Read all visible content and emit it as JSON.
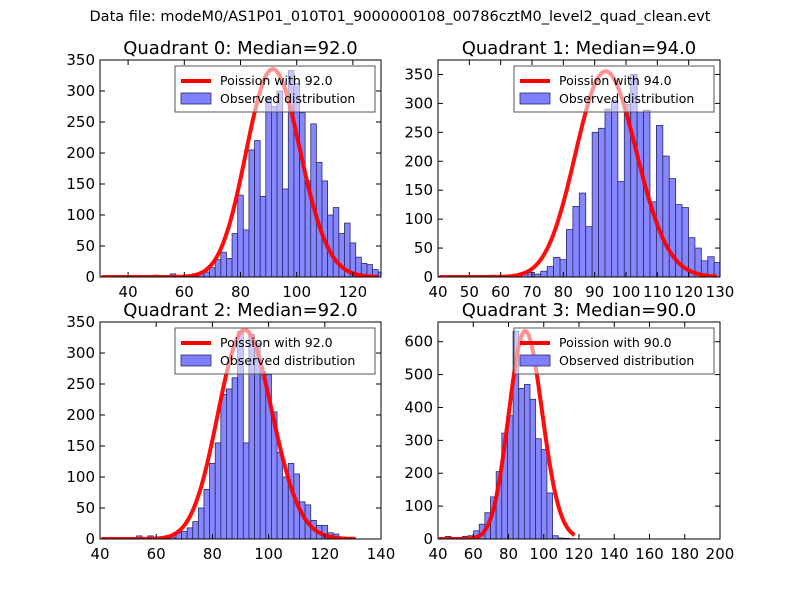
{
  "suptitle": "Data file: modeM0/AS1P01_010T01_9000000108_00786cztM0_level2_quad_clean.evt",
  "colors": {
    "bar_fill": "#7f7fff",
    "bar_edge": "#2a2a66",
    "line": "#ff0000"
  },
  "chart_data": [
    {
      "type": "bar",
      "title": "Quadrant 0: Median=92.0",
      "xlim": [
        30,
        130
      ],
      "ylim": [
        0,
        350
      ],
      "xticks": [
        40,
        60,
        80,
        100,
        120
      ],
      "yticks": [
        0,
        50,
        100,
        150,
        200,
        250,
        300,
        350
      ],
      "legend": [
        "Poission with 92.0",
        "Observed distribution"
      ],
      "legend_position": "top-right",
      "bin_width": 2,
      "bin_start": 39,
      "values": [
        1,
        0,
        0,
        0,
        0,
        3,
        0,
        0,
        5,
        0,
        0,
        2,
        3,
        5,
        8,
        15,
        28,
        40,
        30,
        70,
        132,
        76,
        205,
        220,
        130,
        290,
        275,
        300,
        142,
        333,
        312,
        265,
        155,
        247,
        185,
        155,
        100,
        112,
        70,
        87,
        55,
        32,
        22,
        20,
        12,
        8,
        4,
        8,
        3
      ],
      "poisson_mu": 92.0,
      "poisson_peak": 335
    },
    {
      "type": "bar",
      "title": "Quadrant 1: Median=94.0",
      "xlim": [
        40,
        130
      ],
      "ylim": [
        0,
        375
      ],
      "xticks": [
        40,
        50,
        60,
        70,
        80,
        90,
        100,
        110,
        120,
        130
      ],
      "xtick_labels": [
        "40",
        "50",
        "60",
        "70",
        "80",
        "90",
        "100",
        "110",
        "120",
        "130"
      ],
      "yticks": [
        0,
        50,
        100,
        150,
        200,
        250,
        300,
        350
      ],
      "legend": [
        "Poission with 94.0",
        "Observed distribution"
      ],
      "legend_position": "top-right",
      "bin_width": 2.05,
      "bin_start": 40,
      "values": [
        1,
        0,
        0,
        0,
        0,
        0,
        0,
        2,
        3,
        2,
        2,
        0,
        0,
        8,
        8,
        5,
        10,
        18,
        34,
        30,
        82,
        122,
        145,
        87,
        250,
        257,
        290,
        305,
        165,
        298,
        350,
        285,
        288,
        130,
        262,
        209,
        170,
        125,
        120,
        68,
        50,
        28,
        35,
        25,
        22,
        15,
        7,
        5,
        3
      ],
      "poisson_mu": 94.0,
      "poisson_peak": 355
    },
    {
      "type": "bar",
      "title": "Quadrant 2: Median=92.0",
      "xlim": [
        40,
        140
      ],
      "ylim": [
        0,
        350
      ],
      "xticks": [
        40,
        60,
        80,
        100,
        120,
        140
      ],
      "yticks": [
        0,
        50,
        100,
        150,
        200,
        250,
        300,
        350
      ],
      "legend": [
        "Poission with 92.0",
        "Observed distribution"
      ],
      "legend_position": "top-right",
      "bin_width": 2,
      "bin_start": 41,
      "values": [
        1,
        0,
        0,
        0,
        0,
        0,
        5,
        0,
        5,
        0,
        0,
        2,
        3,
        10,
        12,
        18,
        28,
        50,
        80,
        122,
        155,
        233,
        242,
        260,
        335,
        155,
        330,
        315,
        270,
        265,
        205,
        140,
        100,
        122,
        105,
        60,
        55,
        30,
        22,
        22,
        10,
        8,
        3,
        2,
        1
      ],
      "poisson_mu": 92.0,
      "poisson_peak": 337
    },
    {
      "type": "bar",
      "title": "Quadrant 3: Median=90.0",
      "xlim": [
        40,
        200
      ],
      "ylim": [
        0,
        660
      ],
      "xticks": [
        40,
        60,
        80,
        100,
        120,
        140,
        160,
        180,
        200
      ],
      "yticks": [
        0,
        100,
        200,
        300,
        400,
        500,
        600
      ],
      "legend": [
        "Poission with 90.0",
        "Observed distribution"
      ],
      "legend_position": "top-right",
      "bin_width": 3.2,
      "bin_start": 41,
      "values": [
        3,
        8,
        5,
        3,
        8,
        10,
        25,
        45,
        80,
        128,
        205,
        322,
        375,
        632,
        458,
        470,
        425,
        305,
        272,
        140,
        10,
        3,
        2,
        1
      ],
      "poisson_mu": 90.0,
      "poisson_peak": 632
    }
  ]
}
